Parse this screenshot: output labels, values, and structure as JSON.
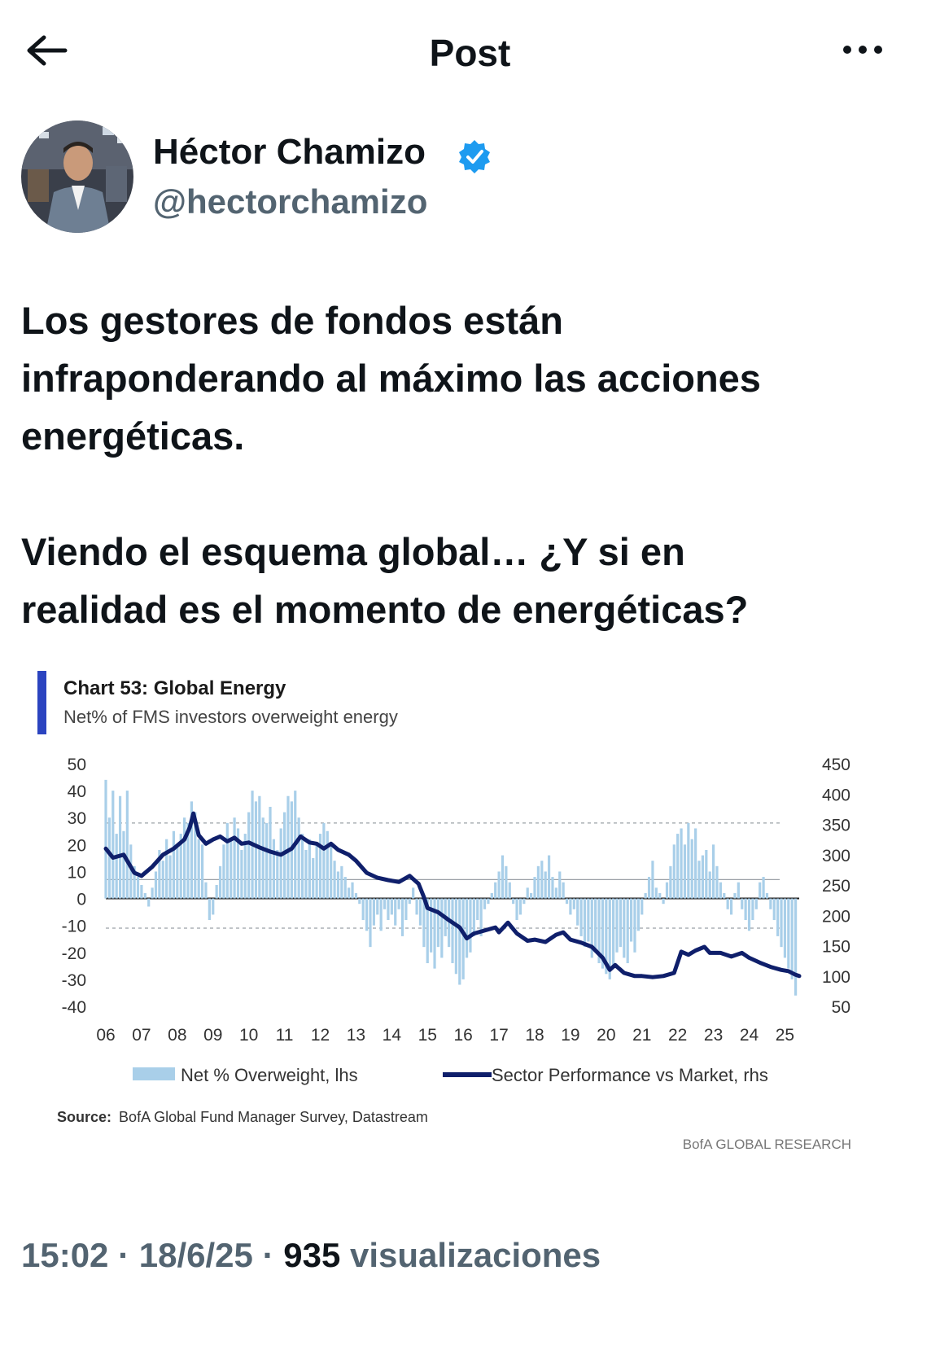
{
  "header": {
    "title": "Post"
  },
  "author": {
    "name": "Héctor Chamizo",
    "handle": "@hectorchamizo",
    "verified": true,
    "verified_color": "#1d9bf0"
  },
  "post": {
    "paragraphs": [
      [
        "Los gestores de fondos están",
        "infraponderando al máximo las acciones",
        "energéticas."
      ],
      [
        "Viendo el esquema global… ¿Y si en",
        "realidad es el momento de energéticas?"
      ]
    ]
  },
  "meta": {
    "time": "15:02",
    "date": "18/6/25",
    "views_count": "935",
    "views_label": "visualizaciones",
    "separator": "·"
  },
  "chart_data": {
    "type": "bar+line",
    "title": "Chart 53: Global Energy",
    "subtitle": "Net% of FMS investors overweight energy",
    "left_axis": {
      "ticks": [
        "50",
        "40",
        "30",
        "20",
        "10",
        "0",
        "-10",
        "-20",
        "-30",
        "-40"
      ],
      "range": [
        -40,
        50
      ]
    },
    "right_axis": {
      "ticks": [
        "450",
        "400",
        "350",
        "300",
        "250",
        "200",
        "150",
        "100",
        "50"
      ],
      "range": [
        50,
        450
      ]
    },
    "x_ticks": [
      "06",
      "07",
      "08",
      "09",
      "10",
      "11",
      "12",
      "13",
      "14",
      "15",
      "16",
      "17",
      "18",
      "19",
      "20",
      "21",
      "22",
      "23",
      "24",
      "25"
    ],
    "x_range": [
      2006,
      2025.4
    ],
    "reference_lines": [
      28,
      7,
      -11
    ],
    "series": [
      {
        "name": "Net % Overweight, lhs",
        "kind": "bar",
        "axis": "left",
        "color": "#a9cfe9",
        "points": [
          [
            2006.0,
            44
          ],
          [
            2006.1,
            30
          ],
          [
            2006.2,
            40
          ],
          [
            2006.3,
            24
          ],
          [
            2006.4,
            38
          ],
          [
            2006.5,
            25
          ],
          [
            2006.6,
            40
          ],
          [
            2006.7,
            20
          ],
          [
            2006.8,
            12
          ],
          [
            2006.9,
            8
          ],
          [
            2007.0,
            5
          ],
          [
            2007.1,
            2
          ],
          [
            2007.2,
            -3
          ],
          [
            2007.3,
            4
          ],
          [
            2007.4,
            10
          ],
          [
            2007.5,
            18
          ],
          [
            2007.6,
            14
          ],
          [
            2007.7,
            22
          ],
          [
            2007.8,
            16
          ],
          [
            2007.9,
            25
          ],
          [
            2008.0,
            20
          ],
          [
            2008.1,
            24
          ],
          [
            2008.2,
            30
          ],
          [
            2008.3,
            28
          ],
          [
            2008.4,
            36
          ],
          [
            2008.5,
            32
          ],
          [
            2008.6,
            22
          ],
          [
            2008.7,
            20
          ],
          [
            2008.8,
            6
          ],
          [
            2008.9,
            -8
          ],
          [
            2009.0,
            -6
          ],
          [
            2009.1,
            5
          ],
          [
            2009.2,
            12
          ],
          [
            2009.3,
            20
          ],
          [
            2009.4,
            28
          ],
          [
            2009.5,
            22
          ],
          [
            2009.6,
            30
          ],
          [
            2009.7,
            26
          ],
          [
            2009.8,
            18
          ],
          [
            2009.9,
            24
          ],
          [
            2010.0,
            32
          ],
          [
            2010.1,
            40
          ],
          [
            2010.2,
            36
          ],
          [
            2010.3,
            38
          ],
          [
            2010.4,
            30
          ],
          [
            2010.5,
            28
          ],
          [
            2010.6,
            34
          ],
          [
            2010.7,
            22
          ],
          [
            2010.8,
            18
          ],
          [
            2010.9,
            26
          ],
          [
            2011.0,
            32
          ],
          [
            2011.1,
            38
          ],
          [
            2011.2,
            36
          ],
          [
            2011.3,
            40
          ],
          [
            2011.4,
            30
          ],
          [
            2011.5,
            24
          ],
          [
            2011.6,
            18
          ],
          [
            2011.7,
            22
          ],
          [
            2011.8,
            15
          ],
          [
            2011.9,
            20
          ],
          [
            2012.0,
            24
          ],
          [
            2012.1,
            28
          ],
          [
            2012.2,
            25
          ],
          [
            2012.3,
            20
          ],
          [
            2012.4,
            14
          ],
          [
            2012.5,
            10
          ],
          [
            2012.6,
            12
          ],
          [
            2012.7,
            8
          ],
          [
            2012.8,
            4
          ],
          [
            2012.9,
            6
          ],
          [
            2013.0,
            2
          ],
          [
            2013.1,
            -2
          ],
          [
            2013.2,
            -8
          ],
          [
            2013.3,
            -12
          ],
          [
            2013.4,
            -18
          ],
          [
            2013.5,
            -10
          ],
          [
            2013.6,
            -6
          ],
          [
            2013.7,
            -12
          ],
          [
            2013.8,
            -4
          ],
          [
            2013.9,
            -8
          ],
          [
            2014.0,
            -6
          ],
          [
            2014.1,
            -10
          ],
          [
            2014.2,
            -4
          ],
          [
            2014.3,
            -14
          ],
          [
            2014.4,
            -8
          ],
          [
            2014.5,
            -2
          ],
          [
            2014.6,
            4
          ],
          [
            2014.7,
            -6
          ],
          [
            2014.8,
            -10
          ],
          [
            2014.9,
            -18
          ],
          [
            2015.0,
            -24
          ],
          [
            2015.1,
            -20
          ],
          [
            2015.2,
            -26
          ],
          [
            2015.3,
            -18
          ],
          [
            2015.4,
            -22
          ],
          [
            2015.5,
            -14
          ],
          [
            2015.6,
            -18
          ],
          [
            2015.7,
            -24
          ],
          [
            2015.8,
            -28
          ],
          [
            2015.9,
            -32
          ],
          [
            2016.0,
            -30
          ],
          [
            2016.1,
            -22
          ],
          [
            2016.2,
            -20
          ],
          [
            2016.3,
            -14
          ],
          [
            2016.4,
            -8
          ],
          [
            2016.5,
            -14
          ],
          [
            2016.6,
            -4
          ],
          [
            2016.7,
            -2
          ],
          [
            2016.8,
            2
          ],
          [
            2016.9,
            6
          ],
          [
            2017.0,
            10
          ],
          [
            2017.1,
            16
          ],
          [
            2017.2,
            12
          ],
          [
            2017.3,
            6
          ],
          [
            2017.4,
            -2
          ],
          [
            2017.5,
            -8
          ],
          [
            2017.6,
            -6
          ],
          [
            2017.7,
            -2
          ],
          [
            2017.8,
            4
          ],
          [
            2017.9,
            2
          ],
          [
            2018.0,
            8
          ],
          [
            2018.1,
            12
          ],
          [
            2018.2,
            14
          ],
          [
            2018.3,
            10
          ],
          [
            2018.4,
            16
          ],
          [
            2018.5,
            8
          ],
          [
            2018.6,
            4
          ],
          [
            2018.7,
            10
          ],
          [
            2018.8,
            6
          ],
          [
            2018.9,
            -2
          ],
          [
            2019.0,
            -6
          ],
          [
            2019.1,
            -4
          ],
          [
            2019.2,
            -10
          ],
          [
            2019.3,
            -14
          ],
          [
            2019.4,
            -18
          ],
          [
            2019.5,
            -16
          ],
          [
            2019.6,
            -22
          ],
          [
            2019.7,
            -20
          ],
          [
            2019.8,
            -24
          ],
          [
            2019.9,
            -26
          ],
          [
            2020.0,
            -28
          ],
          [
            2020.1,
            -30
          ],
          [
            2020.2,
            -26
          ],
          [
            2020.3,
            -20
          ],
          [
            2020.4,
            -18
          ],
          [
            2020.5,
            -22
          ],
          [
            2020.6,
            -24
          ],
          [
            2020.7,
            -16
          ],
          [
            2020.8,
            -20
          ],
          [
            2020.9,
            -12
          ],
          [
            2021.0,
            -6
          ],
          [
            2021.1,
            2
          ],
          [
            2021.2,
            8
          ],
          [
            2021.3,
            14
          ],
          [
            2021.4,
            4
          ],
          [
            2021.5,
            2
          ],
          [
            2021.6,
            -2
          ],
          [
            2021.7,
            6
          ],
          [
            2021.8,
            12
          ],
          [
            2021.9,
            20
          ],
          [
            2022.0,
            24
          ],
          [
            2022.1,
            26
          ],
          [
            2022.2,
            20
          ],
          [
            2022.3,
            28
          ],
          [
            2022.4,
            22
          ],
          [
            2022.5,
            26
          ],
          [
            2022.6,
            14
          ],
          [
            2022.7,
            16
          ],
          [
            2022.8,
            18
          ],
          [
            2022.9,
            10
          ],
          [
            2023.0,
            20
          ],
          [
            2023.1,
            12
          ],
          [
            2023.2,
            6
          ],
          [
            2023.3,
            2
          ],
          [
            2023.4,
            -4
          ],
          [
            2023.5,
            -6
          ],
          [
            2023.6,
            2
          ],
          [
            2023.7,
            6
          ],
          [
            2023.8,
            -4
          ],
          [
            2023.9,
            -8
          ],
          [
            2024.0,
            -12
          ],
          [
            2024.1,
            -8
          ],
          [
            2024.2,
            -4
          ],
          [
            2024.3,
            6
          ],
          [
            2024.4,
            8
          ],
          [
            2024.5,
            2
          ],
          [
            2024.6,
            -4
          ],
          [
            2024.7,
            -8
          ],
          [
            2024.8,
            -14
          ],
          [
            2024.9,
            -18
          ],
          [
            2025.0,
            -22
          ],
          [
            2025.1,
            -26
          ],
          [
            2025.2,
            -30
          ],
          [
            2025.3,
            -36
          ]
        ]
      },
      {
        "name": "Sector Performance vs Market, rhs",
        "kind": "line",
        "axis": "right",
        "color": "#0f1f6b",
        "points": [
          [
            2006.0,
            310
          ],
          [
            2006.2,
            295
          ],
          [
            2006.5,
            300
          ],
          [
            2006.8,
            270
          ],
          [
            2007.0,
            265
          ],
          [
            2007.3,
            280
          ],
          [
            2007.6,
            300
          ],
          [
            2007.9,
            310
          ],
          [
            2008.2,
            325
          ],
          [
            2008.35,
            345
          ],
          [
            2008.45,
            368
          ],
          [
            2008.6,
            332
          ],
          [
            2008.8,
            318
          ],
          [
            2009.0,
            325
          ],
          [
            2009.2,
            330
          ],
          [
            2009.4,
            322
          ],
          [
            2009.6,
            328
          ],
          [
            2009.8,
            318
          ],
          [
            2010.0,
            320
          ],
          [
            2010.3,
            312
          ],
          [
            2010.6,
            305
          ],
          [
            2010.9,
            300
          ],
          [
            2011.2,
            310
          ],
          [
            2011.45,
            330
          ],
          [
            2011.7,
            320
          ],
          [
            2011.9,
            318
          ],
          [
            2012.1,
            310
          ],
          [
            2012.3,
            318
          ],
          [
            2012.5,
            308
          ],
          [
            2012.8,
            300
          ],
          [
            2013.0,
            290
          ],
          [
            2013.3,
            270
          ],
          [
            2013.6,
            262
          ],
          [
            2013.9,
            258
          ],
          [
            2014.2,
            255
          ],
          [
            2014.5,
            265
          ],
          [
            2014.75,
            252
          ],
          [
            2014.9,
            230
          ],
          [
            2015.0,
            212
          ],
          [
            2015.3,
            205
          ],
          [
            2015.6,
            192
          ],
          [
            2015.9,
            180
          ],
          [
            2016.1,
            162
          ],
          [
            2016.3,
            170
          ],
          [
            2016.6,
            175
          ],
          [
            2016.9,
            180
          ],
          [
            2017.0,
            172
          ],
          [
            2017.25,
            188
          ],
          [
            2017.5,
            170
          ],
          [
            2017.8,
            158
          ],
          [
            2018.0,
            160
          ],
          [
            2018.3,
            156
          ],
          [
            2018.6,
            168
          ],
          [
            2018.8,
            172
          ],
          [
            2019.0,
            160
          ],
          [
            2019.3,
            155
          ],
          [
            2019.6,
            148
          ],
          [
            2019.9,
            130
          ],
          [
            2020.1,
            110
          ],
          [
            2020.25,
            118
          ],
          [
            2020.5,
            105
          ],
          [
            2020.8,
            100
          ],
          [
            2021.0,
            100
          ],
          [
            2021.3,
            98
          ],
          [
            2021.6,
            100
          ],
          [
            2021.9,
            105
          ],
          [
            2022.1,
            140
          ],
          [
            2022.3,
            135
          ],
          [
            2022.5,
            142
          ],
          [
            2022.75,
            148
          ],
          [
            2022.9,
            138
          ],
          [
            2023.2,
            138
          ],
          [
            2023.5,
            132
          ],
          [
            2023.8,
            138
          ],
          [
            2024.0,
            130
          ],
          [
            2024.3,
            122
          ],
          [
            2024.6,
            115
          ],
          [
            2024.9,
            110
          ],
          [
            2025.1,
            108
          ],
          [
            2025.3,
            102
          ],
          [
            2025.4,
            100
          ]
        ]
      }
    ],
    "legend": [
      {
        "label": "Net % Overweight, lhs",
        "type": "bar",
        "color": "#a9cfe9"
      },
      {
        "label": "Sector Performance vs Market, rhs",
        "type": "line",
        "color": "#0f1f6b"
      }
    ],
    "source_label": "Source:",
    "source_text": "BofA Global Fund Manager Survey, Datastream",
    "watermark": "BofA GLOBAL RESEARCH",
    "accent_color": "#2b44c0"
  }
}
